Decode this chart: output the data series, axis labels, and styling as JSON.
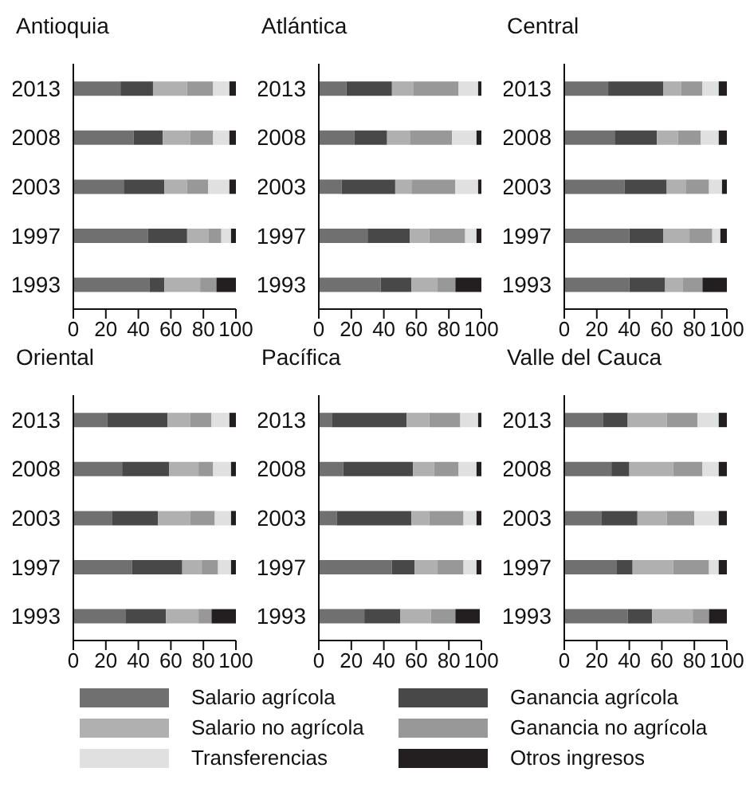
{
  "chart_data": [
    {
      "type": "bar",
      "title": "Antioquia",
      "orientation": "horizontal",
      "stacked": true,
      "legend": "bottom",
      "categories": [
        "2013",
        "2008",
        "2003",
        "1997",
        "1993"
      ],
      "xlim": [
        0,
        100
      ],
      "xticks": [
        0,
        20,
        40,
        60,
        80,
        100
      ],
      "series": [
        {
          "name": "Salario agrícola",
          "color": "#707070",
          "values": [
            29,
            37,
            31,
            46,
            47
          ]
        },
        {
          "name": "Ganancia agrícola",
          "color": "#484848",
          "values": [
            20,
            18,
            25,
            24,
            9
          ]
        },
        {
          "name": "Salario no agrícola",
          "color": "#b0b0b0",
          "values": [
            21,
            17,
            14,
            13,
            22
          ]
        },
        {
          "name": "Ganancia no agrícola",
          "color": "#989898",
          "values": [
            16,
            14,
            13,
            8,
            10
          ]
        },
        {
          "name": "Transferencias",
          "color": "#e0e0e0",
          "values": [
            10,
            10,
            13,
            6,
            0
          ]
        },
        {
          "name": "Otros ingresos",
          "color": "#231f20",
          "values": [
            4,
            4,
            4,
            3,
            12
          ]
        }
      ]
    },
    {
      "type": "bar",
      "title": "Atlántica",
      "orientation": "horizontal",
      "stacked": true,
      "categories": [
        "2013",
        "2008",
        "2003",
        "1997",
        "1993"
      ],
      "xlim": [
        0,
        100
      ],
      "xticks": [
        0,
        20,
        40,
        60,
        80,
        100
      ],
      "series": [
        {
          "color": "#707070",
          "values": [
            17,
            22,
            14,
            30,
            38
          ]
        },
        {
          "color": "#484848",
          "values": [
            28,
            20,
            33,
            26,
            19
          ]
        },
        {
          "color": "#b0b0b0",
          "values": [
            13,
            14,
            10,
            12,
            16
          ]
        },
        {
          "color": "#989898",
          "values": [
            28,
            26,
            27,
            22,
            11
          ]
        },
        {
          "color": "#e0e0e0",
          "values": [
            12,
            15,
            14,
            7,
            0
          ]
        },
        {
          "color": "#231f20",
          "values": [
            2,
            3,
            2,
            3,
            16
          ]
        }
      ]
    },
    {
      "type": "bar",
      "title": "Central",
      "orientation": "horizontal",
      "stacked": true,
      "categories": [
        "2013",
        "2008",
        "2003",
        "1997",
        "1993"
      ],
      "xlim": [
        0,
        100
      ],
      "xticks": [
        0,
        20,
        40,
        60,
        80,
        100
      ],
      "series": [
        {
          "color": "#707070",
          "values": [
            27,
            31,
            37,
            40,
            40
          ]
        },
        {
          "color": "#484848",
          "values": [
            34,
            26,
            26,
            21,
            22
          ]
        },
        {
          "color": "#b0b0b0",
          "values": [
            11,
            13,
            12,
            16,
            11
          ]
        },
        {
          "color": "#989898",
          "values": [
            13,
            14,
            14,
            14,
            12
          ]
        },
        {
          "color": "#e0e0e0",
          "values": [
            10,
            11,
            8,
            5,
            0
          ]
        },
        {
          "color": "#231f20",
          "values": [
            5,
            5,
            3,
            4,
            15
          ]
        }
      ]
    },
    {
      "type": "bar",
      "title": "Oriental",
      "orientation": "horizontal",
      "stacked": true,
      "categories": [
        "2013",
        "2008",
        "2003",
        "1997",
        "1993"
      ],
      "xlim": [
        0,
        100
      ],
      "xticks": [
        0,
        20,
        40,
        60,
        80,
        100
      ],
      "series": [
        {
          "color": "#707070",
          "values": [
            21,
            30,
            24,
            36,
            32
          ]
        },
        {
          "color": "#484848",
          "values": [
            37,
            29,
            28,
            31,
            25
          ]
        },
        {
          "color": "#b0b0b0",
          "values": [
            14,
            18,
            20,
            12,
            20
          ]
        },
        {
          "color": "#989898",
          "values": [
            13,
            9,
            15,
            10,
            8
          ]
        },
        {
          "color": "#e0e0e0",
          "values": [
            11,
            11,
            10,
            8,
            0
          ]
        },
        {
          "color": "#231f20",
          "values": [
            4,
            3,
            3,
            3,
            15
          ]
        }
      ]
    },
    {
      "type": "bar",
      "title": "Pacífica",
      "orientation": "horizontal",
      "stacked": true,
      "categories": [
        "2013",
        "2008",
        "2003",
        "1997",
        "1993"
      ],
      "xlim": [
        0,
        100
      ],
      "xticks": [
        0,
        20,
        40,
        60,
        80,
        100
      ],
      "series": [
        {
          "color": "#707070",
          "values": [
            8,
            15,
            11,
            45,
            28
          ]
        },
        {
          "color": "#484848",
          "values": [
            46,
            43,
            46,
            14,
            22
          ]
        },
        {
          "color": "#b0b0b0",
          "values": [
            14,
            13,
            11,
            14,
            19
          ]
        },
        {
          "color": "#989898",
          "values": [
            19,
            15,
            21,
            16,
            15
          ]
        },
        {
          "color": "#e0e0e0",
          "values": [
            11,
            11,
            8,
            8,
            0
          ]
        },
        {
          "color": "#231f20",
          "values": [
            2,
            3,
            3,
            3,
            15
          ]
        }
      ]
    },
    {
      "type": "bar",
      "title": "Valle del Cauca",
      "orientation": "horizontal",
      "stacked": true,
      "categories": [
        "2013",
        "2008",
        "2003",
        "1997",
        "1993"
      ],
      "xlim": [
        0,
        100
      ],
      "xticks": [
        0,
        20,
        40,
        60,
        80,
        100
      ],
      "series": [
        {
          "color": "#707070",
          "values": [
            24,
            29,
            23,
            32,
            39
          ]
        },
        {
          "color": "#484848",
          "values": [
            15,
            11,
            22,
            10,
            15
          ]
        },
        {
          "color": "#b0b0b0",
          "values": [
            24,
            27,
            18,
            25,
            25
          ]
        },
        {
          "color": "#989898",
          "values": [
            19,
            18,
            17,
            22,
            10
          ]
        },
        {
          "color": "#e0e0e0",
          "values": [
            13,
            10,
            15,
            6,
            0
          ]
        },
        {
          "color": "#231f20",
          "values": [
            5,
            5,
            5,
            5,
            11
          ]
        }
      ]
    }
  ]
}
